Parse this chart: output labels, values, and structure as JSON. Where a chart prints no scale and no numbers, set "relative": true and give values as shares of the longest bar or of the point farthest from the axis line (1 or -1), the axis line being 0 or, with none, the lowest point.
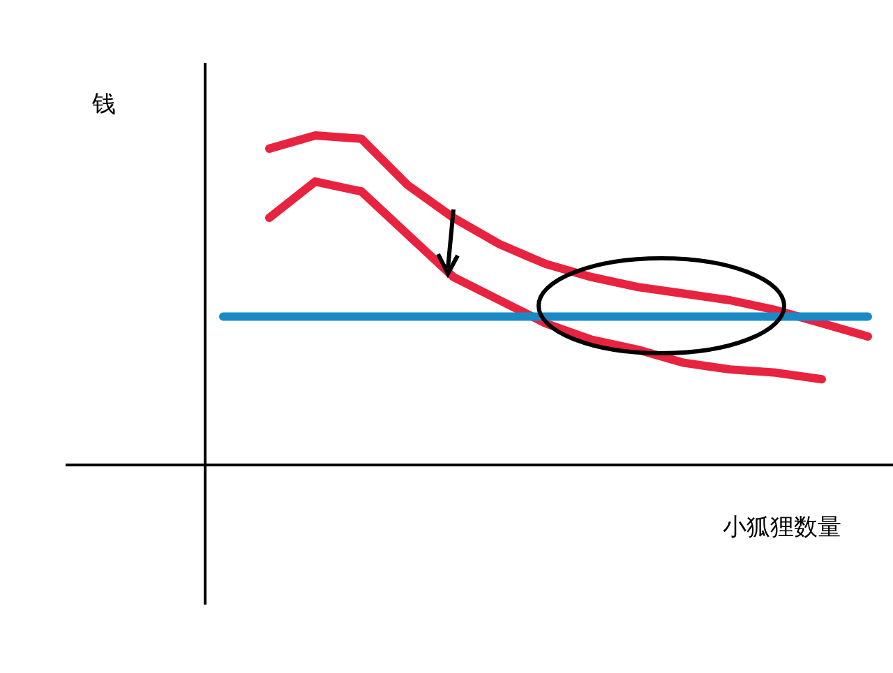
{
  "chart_data": {
    "type": "line",
    "relative": true,
    "xlabel": "小狐狸数量",
    "ylabel": "钱",
    "categories": [
      null,
      null,
      null,
      null,
      null,
      null,
      null,
      null,
      null,
      null,
      null,
      null,
      null,
      null,
      null
    ],
    "series": [
      {
        "color": "#e8233f",
        "values": [
          null,
          0.96,
          1.0,
          0.99,
          0.85,
          0.75,
          0.67,
          0.61,
          0.57,
          0.54,
          0.52,
          0.5,
          0.47,
          0.43,
          0.39
        ]
      },
      {
        "color": "#e8233f",
        "values": [
          null,
          0.75,
          0.86,
          0.83,
          0.7,
          0.57,
          0.5,
          0.43,
          0.38,
          0.35,
          0.31,
          0.29,
          0.28,
          0.26,
          null
        ]
      },
      {
        "color": "#1a8ac6",
        "values": [
          0.45,
          0.45,
          0.45,
          0.45,
          0.45,
          0.45,
          0.45,
          0.45,
          0.45,
          0.45,
          0.45,
          0.45,
          0.45,
          0.45,
          0.45
        ]
      }
    ]
  }
}
